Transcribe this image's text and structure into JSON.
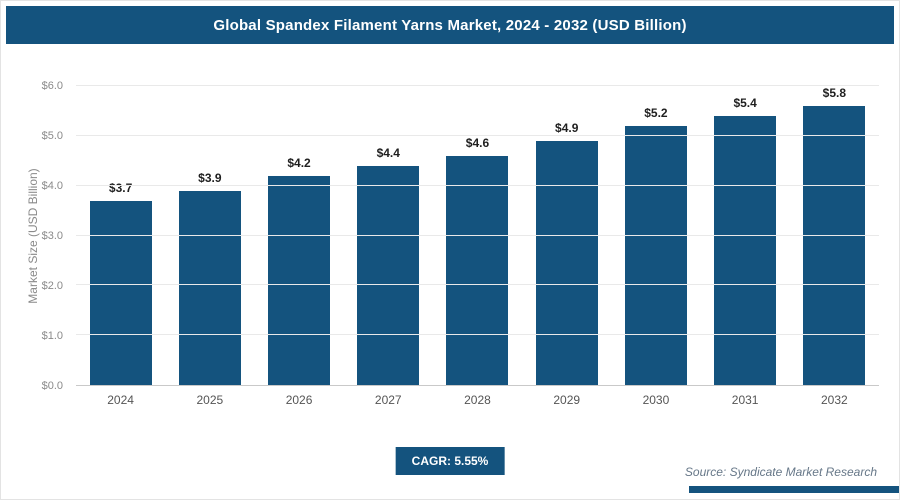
{
  "header": {
    "title": "Global Spandex Filament Yarns Market, 2024 - 2032 (USD Billion)"
  },
  "chart_data": {
    "type": "bar",
    "title": "Global Spandex Filament Yarns Market, 2024 - 2032 (USD Billion)",
    "categories": [
      "2024",
      "2025",
      "2026",
      "2027",
      "2028",
      "2029",
      "2030",
      "2031",
      "2032"
    ],
    "values": [
      3.7,
      3.9,
      4.2,
      4.4,
      4.6,
      4.9,
      5.2,
      5.4,
      5.8
    ],
    "value_labels": [
      "$3.7",
      "$3.9",
      "$4.2",
      "$4.4",
      "$4.6",
      "$4.9",
      "$5.2",
      "$5.4",
      "$5.8"
    ],
    "xlabel": "",
    "ylabel": "Market Size (USD Billion)",
    "ylim": [
      0,
      6
    ],
    "ytick_step": 1,
    "ytick_labels": [
      "$0.0",
      "$1.0",
      "$2.0",
      "$3.0",
      "$4.0",
      "$5.0",
      "$6.0"
    ],
    "grid": true,
    "legend": false,
    "bar_color": "#14537e"
  },
  "footer": {
    "cagr_label": "CAGR: 5.55%",
    "source": "Source: Syndicate Market Research"
  },
  "colors": {
    "accent": "#14537e",
    "header_bg": "#14537e",
    "gridline": "#e9e9e9",
    "tick_text": "#8a8a8a"
  }
}
